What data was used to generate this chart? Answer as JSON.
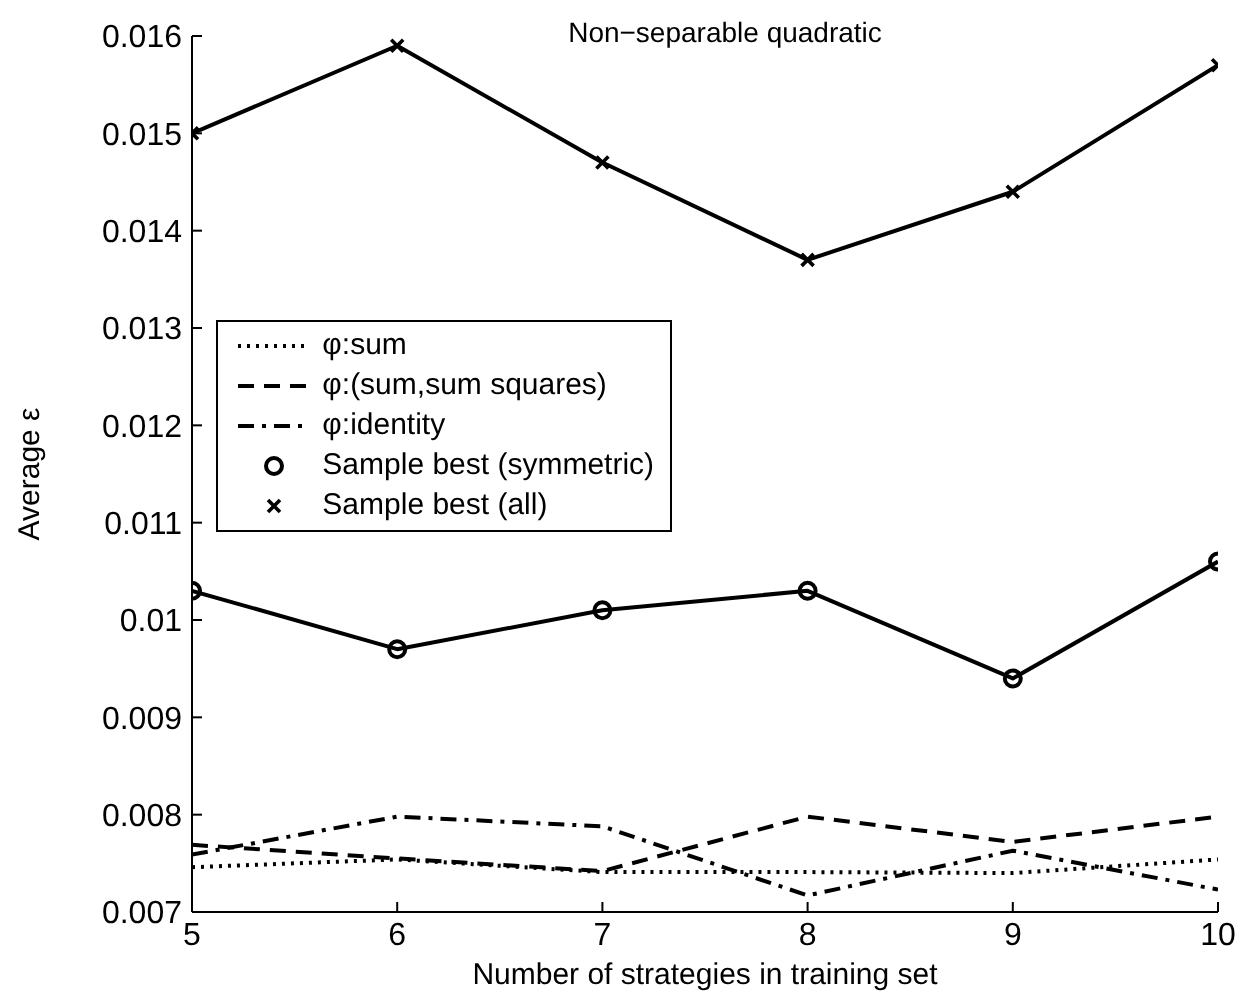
{
  "chart_data": {
    "type": "line",
    "title": "Non−separable quadratic",
    "xlabel": "Number of strategies in training set",
    "ylabel": "Average ε",
    "x": [
      5,
      6,
      7,
      8,
      9,
      10
    ],
    "series": [
      {
        "name": "φ:sum",
        "color": "#000000",
        "line_style": "dotted",
        "marker": "none",
        "values": [
          0.00746,
          0.00754,
          0.00741,
          0.00741,
          0.0074,
          0.00754
        ]
      },
      {
        "name": "φ:(sum,sum squares)",
        "color": "#000000",
        "line_style": "dashed",
        "marker": "none",
        "values": [
          0.00769,
          0.00755,
          0.00742,
          0.00798,
          0.00772,
          0.00798
        ]
      },
      {
        "name": "φ:identity",
        "color": "#000000",
        "line_style": "dashdot",
        "marker": "none",
        "values": [
          0.00759,
          0.00798,
          0.00788,
          0.00717,
          0.00763,
          0.00723
        ]
      },
      {
        "name": "Sample best (symmetric)",
        "color": "#000000",
        "line_style": "solid",
        "marker": "circle",
        "values": [
          0.0103,
          0.0097,
          0.0101,
          0.0103,
          0.0094,
          0.0106
        ]
      },
      {
        "name": "Sample best (all)",
        "color": "#000000",
        "line_style": "solid",
        "marker": "cross",
        "values": [
          0.015,
          0.0159,
          0.0147,
          0.0137,
          0.0144,
          0.0157
        ]
      }
    ],
    "xlim": [
      5,
      10
    ],
    "xticks": [
      5,
      6,
      7,
      8,
      9,
      10
    ],
    "ylim": [
      0.007,
      0.016
    ],
    "yticks": [
      0.007,
      0.008,
      0.009,
      0.01,
      0.011,
      0.012,
      0.013,
      0.014,
      0.015,
      0.016
    ],
    "grid": false,
    "legend": "top left"
  }
}
